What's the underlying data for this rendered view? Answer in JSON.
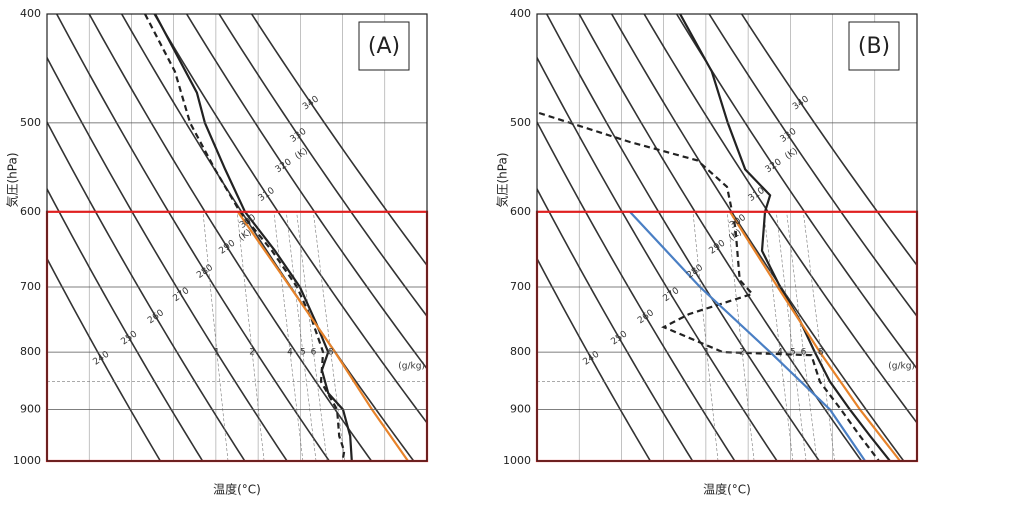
{
  "chart_data": [
    {
      "type": "line",
      "title": "(A)",
      "ylabel": "気圧(hPa)",
      "xlabel": "温度(°C)",
      "ylim": [
        1000,
        400
      ],
      "yticks": [
        400,
        500,
        600,
        700,
        800,
        900,
        1000
      ],
      "y_log": true,
      "xlim": [
        -60,
        30
      ],
      "theta_labels": [
        240,
        250,
        260,
        270,
        280,
        290,
        300,
        310,
        320,
        330,
        340
      ],
      "theta_unit": "(K)",
      "mixing_ratio_labels": [
        1,
        2,
        4,
        5,
        6,
        8
      ],
      "mixing_ratio_unit": "(g/kg)",
      "highlight": {
        "range": [
          600,
          1000
        ],
        "color": "#e02020"
      },
      "series": [
        {
          "color": "#222222",
          "dash": false,
          "x": [
            -34.4,
            -24.5,
            -22.6,
            -17.8,
            -13.1,
            -6.0,
            -0.1,
            3.5,
            6.6,
            5.1,
            6.6,
            10.1,
            11.8,
            12.2
          ],
          "values": [
            400,
            470,
            500,
            550,
            600,
            650,
            700,
            750,
            800,
            830,
            870,
            900,
            950,
            1000
          ]
        },
        {
          "color": "#222222",
          "dash": true,
          "x": [
            -36.8,
            -29.7,
            -26.1,
            -20.2,
            -14.3,
            -6.7,
            -0.8,
            2.8,
            5.4,
            4.9,
            8.7,
            9.2,
            10.4,
            10.0
          ],
          "values": [
            400,
            450,
            500,
            550,
            600,
            650,
            700,
            750,
            800,
            850,
            900,
            950,
            980,
            1000
          ]
        },
        {
          "color": "#e8832a",
          "dash": false,
          "x": [
            -14.8,
            -2.4,
            8.2,
            17.0,
            25.5
          ],
          "values": [
            600,
            700,
            800,
            900,
            1000
          ]
        }
      ]
    },
    {
      "type": "line",
      "title": "(B)",
      "ylabel": "気圧(hPa)",
      "xlabel": "温度(°C)",
      "ylim": [
        1000,
        400
      ],
      "yticks": [
        400,
        500,
        600,
        700,
        800,
        900,
        1000
      ],
      "y_log": true,
      "xlim": [
        -60,
        30
      ],
      "theta_labels": [
        240,
        250,
        260,
        270,
        280,
        290,
        300,
        310,
        320,
        330,
        340
      ],
      "theta_unit": "(K)",
      "mixing_ratio_labels": [
        1,
        2,
        4,
        5,
        6,
        8
      ],
      "mixing_ratio_unit": "(g/kg)",
      "highlight": {
        "range": [
          600,
          1000
        ],
        "color": "#e02020"
      },
      "series": [
        {
          "color": "#222222",
          "dash": false,
          "x": [
            -26.1,
            -18.6,
            -14.8,
            -10.7,
            -4.8,
            -6.0,
            -6.7,
            -2.4,
            2.3,
            5.8,
            9.4,
            14.1,
            18.9,
            23.6
          ],
          "values": [
            400,
            450,
            500,
            550,
            580,
            600,
            650,
            700,
            750,
            800,
            850,
            900,
            950,
            1000
          ]
        },
        {
          "color": "#222222",
          "dash": true,
          "x": [
            -59.5,
            -38,
            -22,
            -15,
            -13,
            -12,
            -9,
            -24,
            -30,
            -16,
            5,
            7,
            12,
            16.5,
            21
          ],
          "values": [
            490,
            520,
            540,
            570,
            620,
            690,
            710,
            740,
            760,
            800,
            805,
            850,
            900,
            950,
            1000
          ]
        },
        {
          "color": "#e8832a",
          "dash": false,
          "x": [
            -14.3,
            -3.0,
            7.0,
            16.5,
            26.0
          ],
          "values": [
            600,
            700,
            800,
            900,
            1000
          ]
        },
        {
          "color": "#4a7fc4",
          "dash": false,
          "x": [
            -38.0,
            -21.4,
            -4.8,
            9.4,
            17.7
          ],
          "values": [
            600,
            700,
            800,
            900,
            1000
          ]
        }
      ]
    }
  ]
}
